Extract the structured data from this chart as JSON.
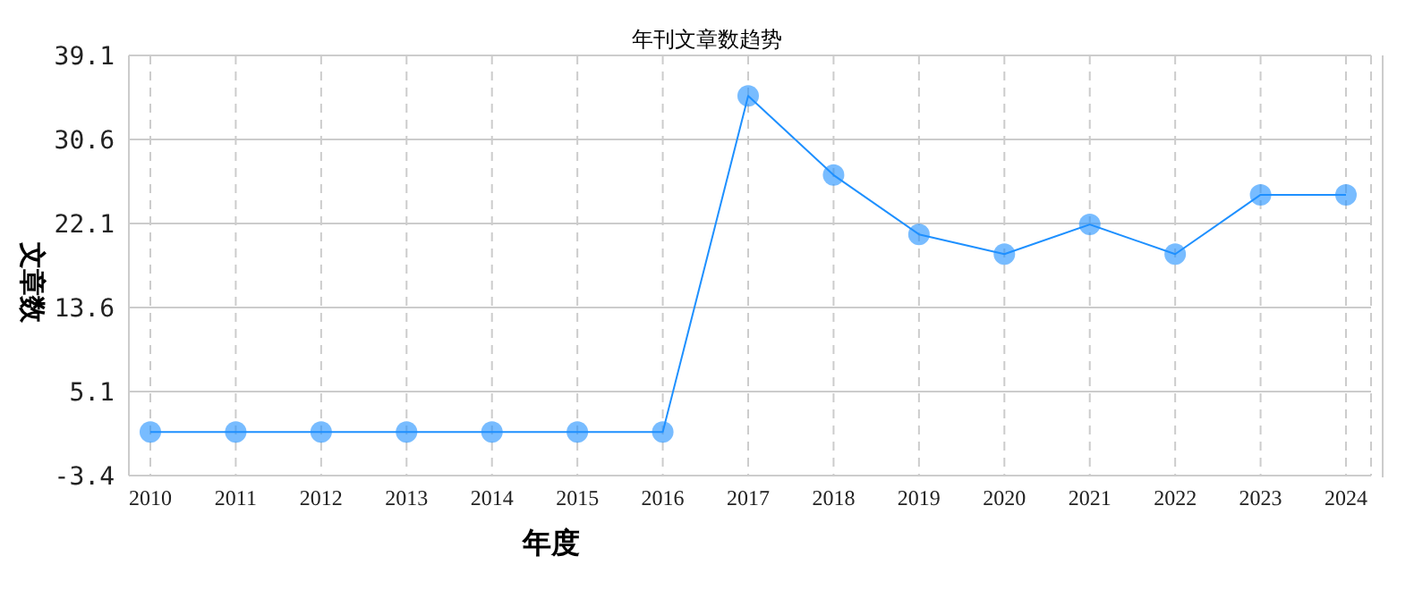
{
  "chart_data": {
    "type": "line",
    "title": "年刊文章数趋势",
    "xlabel": "年度",
    "ylabel": "文章数",
    "categories": [
      "2010",
      "2011",
      "2012",
      "2013",
      "2014",
      "2015",
      "2016",
      "2017",
      "2018",
      "2019",
      "2020",
      "2021",
      "2022",
      "2023",
      "2024"
    ],
    "series": [
      {
        "color": "#1e90ff",
        "values": [
          1,
          1,
          1,
          1,
          1,
          1,
          1,
          35,
          27,
          21,
          19,
          22,
          19,
          25,
          25
        ]
      }
    ],
    "ylim": [
      -3.4,
      39.1
    ],
    "yticks": [
      -3.4,
      5.1,
      13.6,
      22.1,
      30.6,
      39.1
    ],
    "grid": true,
    "legend": false,
    "marker": "circle",
    "line_style": "solid"
  }
}
